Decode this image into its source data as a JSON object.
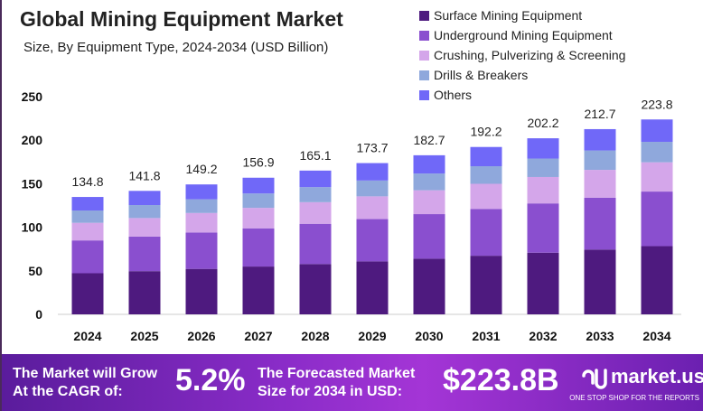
{
  "chart_data": {
    "type": "bar",
    "stacked": true,
    "title": "Global Mining Equipment Market",
    "subtitle": "Size, By Equipment Type, 2024-2034 (USD Billion)",
    "categories": [
      "2024",
      "2025",
      "2026",
      "2027",
      "2028",
      "2029",
      "2030",
      "2031",
      "2032",
      "2033",
      "2034"
    ],
    "totals": [
      "134.8",
      "141.8",
      "149.2",
      "156.9",
      "165.1",
      "173.7",
      "182.7",
      "192.2",
      "202.2",
      "212.7",
      "223.8"
    ],
    "series": [
      {
        "name": "Surface Mining Equipment",
        "color": "#4e1a7f",
        "values": [
          47.2,
          49.6,
          52.2,
          54.9,
          57.8,
          60.8,
          63.9,
          67.3,
          70.8,
          74.4,
          78.3
        ]
      },
      {
        "name": "Underground Mining Equipment",
        "color": "#8a4fcf",
        "values": [
          37.7,
          39.7,
          41.8,
          43.9,
          46.2,
          48.6,
          51.2,
          53.8,
          56.6,
          59.6,
          62.7
        ]
      },
      {
        "name": "Crushing, Pulverizing & Screening",
        "color": "#d4a6ea",
        "values": [
          20.2,
          21.3,
          22.4,
          23.5,
          24.8,
          26.1,
          27.4,
          28.8,
          30.3,
          31.9,
          33.6
        ]
      },
      {
        "name": "Drills & Breakers",
        "color": "#8fa8dc",
        "values": [
          14.2,
          14.9,
          15.7,
          16.5,
          17.3,
          18.2,
          19.2,
          20.2,
          21.2,
          22.3,
          23.5
        ]
      },
      {
        "name": "Others",
        "color": "#7068f8",
        "values": [
          15.5,
          16.3,
          17.1,
          18.1,
          19.0,
          20.0,
          21.0,
          22.1,
          23.3,
          24.5,
          25.7
        ]
      }
    ],
    "yticks": [
      "0",
      "50",
      "100",
      "150",
      "200",
      "250"
    ],
    "ylim": [
      0,
      250
    ],
    "grid": false,
    "legend": "top-right"
  },
  "footer": {
    "cagr_label": "The Market will Grow At the CAGR of:",
    "cagr_value": "5.2%",
    "forecast_label": "The Forecasted Market Size for 2034 in USD:",
    "forecast_value": "$223.8B",
    "brand": "market.us",
    "tagline": "ONE STOP SHOP FOR THE REPORTS"
  }
}
